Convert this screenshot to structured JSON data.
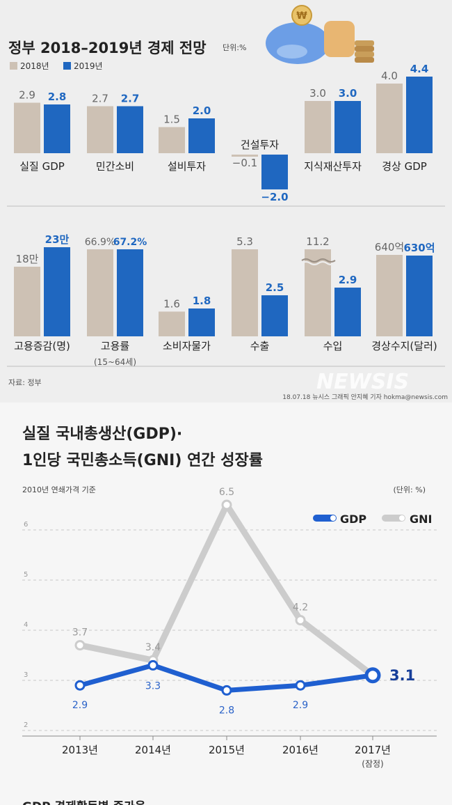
{
  "top": {
    "title": "정부 2018–2019년 경제 전망",
    "unit": "단위:%",
    "legend": [
      "2018년",
      "2019년"
    ],
    "source": "자료: 정부",
    "credit": "18.07.18 뉴시스 그래픽 안지혜 기자 hokma@newsis.com",
    "watermark": "NEWSIS"
  },
  "bottom": {
    "title_line1": "실질 국내총생산(GDP)·",
    "title_line2": "1인당 국민총소득(GNI) 연간 성장률",
    "subtitle": "2010년 연쇄가격 기준",
    "unit": "(단위: %)",
    "footer_text": "GDP 경제활동별 증가율"
  },
  "chart_data": [
    {
      "type": "bar",
      "title": "정부 2018–2019년 경제 전망",
      "unit": "단위:%",
      "series_names": [
        "2018년",
        "2019년"
      ],
      "colors": {
        "2018": "#cdc1b4",
        "2019": "#1f67c0"
      },
      "panels": [
        {
          "label": "실질 GDP",
          "v2018": 2.9,
          "v2019": 2.8,
          "l2018": "2.9",
          "l2019": "2.8"
        },
        {
          "label": "민간소비",
          "v2018": 2.7,
          "v2019": 2.7,
          "l2018": "2.7",
          "l2019": "2.7"
        },
        {
          "label": "설비투자",
          "v2018": 1.5,
          "v2019": 2.0,
          "l2018": "1.5",
          "l2019": "2.0"
        },
        {
          "label": "건설투자",
          "v2018": -0.1,
          "v2019": -2.0,
          "l2018": "−0.1",
          "l2019": "−2.0"
        },
        {
          "label": "지식재산투자",
          "v2018": 3.0,
          "v2019": 3.0,
          "l2018": "3.0",
          "l2019": "3.0"
        },
        {
          "label": "경상 GDP",
          "v2018": 4.0,
          "v2019": 4.4,
          "l2018": "4.0",
          "l2019": "4.4"
        },
        {
          "label": "고용증감(명)",
          "v2018": 18,
          "v2019": 23,
          "l2018": "18만",
          "l2019": "23만"
        },
        {
          "label": "고용률",
          "sublabel": "(15~64세)",
          "v2018": 66.9,
          "v2019": 67.2,
          "l2018": "66.9%",
          "l2019": "67.2%"
        },
        {
          "label": "소비자물가",
          "v2018": 1.6,
          "v2019": 1.8,
          "l2018": "1.6",
          "l2019": "1.8"
        },
        {
          "label": "수출",
          "v2018": 5.3,
          "v2019": 2.5,
          "l2018": "5.3",
          "l2019": "2.5"
        },
        {
          "label": "수입",
          "v2018": 11.2,
          "v2019": 2.9,
          "l2018": "11.2",
          "l2019": "2.9",
          "axis_break": true
        },
        {
          "label": "경상수지(달러)",
          "v2018": 640,
          "v2019": 630,
          "l2018": "640억",
          "l2019": "630억"
        }
      ]
    },
    {
      "type": "line",
      "title": "실질 국내총생산(GDP)· 1인당 국민총소득(GNI) 연간 성장률",
      "categories": [
        "2013년",
        "2014년",
        "2015년",
        "2016년",
        "2017년"
      ],
      "category_notes": [
        "",
        "",
        "",
        "",
        "(잠정)"
      ],
      "yticks": [
        "2",
        "3",
        "4",
        "5",
        "6"
      ],
      "ylim": [
        2,
        6.9
      ],
      "grid": true,
      "legend_position": "top-right",
      "series": [
        {
          "name": "GNI",
          "values": [
            3.7,
            3.4,
            6.5,
            4.2,
            3.1
          ],
          "labels": [
            "3.7",
            "3.4",
            "6.5",
            "4.2",
            ""
          ],
          "color": "#cccccc"
        },
        {
          "name": "GDP",
          "values": [
            2.9,
            3.3,
            2.8,
            2.9,
            3.1
          ],
          "labels": [
            "2.9",
            "3.3",
            "2.8",
            "2.9",
            "3.1"
          ],
          "color": "#1f5fd0"
        }
      ]
    }
  ]
}
